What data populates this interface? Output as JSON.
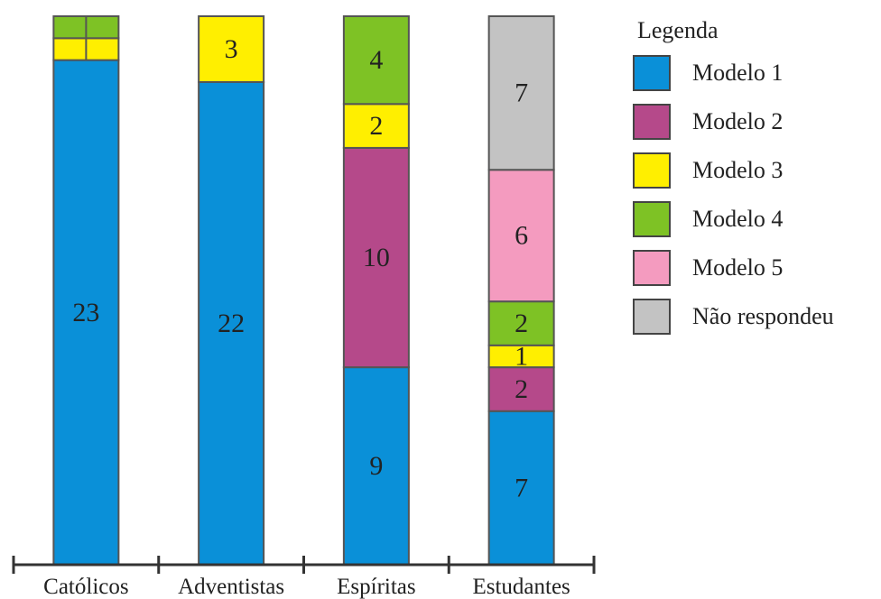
{
  "chart_data": {
    "type": "bar",
    "stacked": true,
    "categories": [
      "Católicos",
      "Adventistas",
      "Espíritas",
      "Estudantes"
    ],
    "series": [
      {
        "name": "Modelo 1",
        "color": "#0a90d8",
        "values": [
          23,
          22,
          9,
          7
        ],
        "labels": [
          "23",
          "22",
          "9",
          "7"
        ]
      },
      {
        "name": "Modelo 2",
        "color": "#b5498a",
        "values": [
          0,
          0,
          10,
          2
        ],
        "labels": [
          "",
          "",
          "10",
          "2"
        ]
      },
      {
        "name": "Modelo 3",
        "color": "#ffef00",
        "values": [
          1,
          3,
          2,
          1
        ],
        "labels": [
          "",
          "3",
          "2",
          "1"
        ]
      },
      {
        "name": "Modelo 4",
        "color": "#7ec225",
        "values": [
          1,
          0,
          4,
          2
        ],
        "labels": [
          "",
          "",
          "4",
          "2"
        ]
      },
      {
        "name": "Modelo 5",
        "color": "#f49bbf",
        "values": [
          0,
          0,
          0,
          6
        ],
        "labels": [
          "",
          "",
          "",
          "6"
        ]
      },
      {
        "name": "Não respondeu",
        "color": "#c3c3c3",
        "values": [
          0,
          0,
          0,
          7
        ],
        "labels": [
          "",
          "",
          "",
          "7"
        ]
      }
    ],
    "ylim": [
      0,
      25
    ],
    "legend": {
      "title": "Legenda",
      "placement": "right"
    },
    "grid": false,
    "title": "",
    "xlabel": "",
    "ylabel": ""
  }
}
